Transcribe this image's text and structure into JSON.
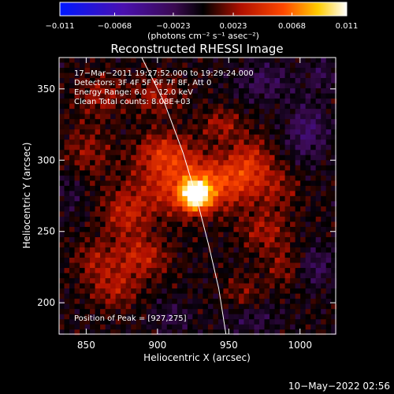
{
  "colorbar": {
    "ticks": [
      "−0.011",
      "−0.0068",
      "−0.0023",
      "0.0023",
      "0.0068",
      "0.011"
    ],
    "values": [
      -0.011,
      -0.0068,
      -0.0023,
      0.0023,
      0.0068,
      0.011
    ],
    "range": [
      -0.011,
      0.011
    ],
    "unit_label": "(photons cm⁻² s⁻¹ asec⁻²)",
    "colors": [
      "#0018ff",
      "#4a10b0",
      "#3a0a50",
      "#000000",
      "#b01000",
      "#ff4800",
      "#ffcc00",
      "#ffffff"
    ]
  },
  "plot": {
    "title": "Reconstructed RHESSI Image",
    "info_lines": [
      "17−Mar−2011 19:27:52.000 to 19:29:24.000",
      "Detectors: 3F 4F 5F 6F 7F 8F, Att 0",
      "Energy Range: 6.0 − 12.0 keV",
      "Clean    Total counts: 8.08E+03"
    ],
    "peak_label": "Position of Peak = [927,275]"
  },
  "footer": {
    "timestamp": "10−May−2022 02:56"
  },
  "chart_data": {
    "type": "heatmap",
    "title": "Reconstructed RHESSI Image",
    "xlabel": "Heliocentric X (arcsec)",
    "ylabel": "Heliocentric Y (arcsec)",
    "xlim": [
      831,
      1025
    ],
    "ylim": [
      178,
      372
    ],
    "xticks": [
      850,
      900,
      950,
      1000
    ],
    "yticks": [
      200,
      250,
      300,
      350
    ],
    "peak": {
      "x": 927,
      "y": 275,
      "value": 0.011
    },
    "grid": false,
    "limb": [
      {
        "x": 889,
        "y": 372
      },
      {
        "x": 905,
        "y": 340
      },
      {
        "x": 918,
        "y": 305
      },
      {
        "x": 927,
        "y": 275
      },
      {
        "x": 936,
        "y": 240
      },
      {
        "x": 943,
        "y": 210
      },
      {
        "x": 948,
        "y": 178
      }
    ],
    "blobs": [
      {
        "x": 927,
        "y": 275,
        "sx": 7,
        "sy": 7,
        "amp": 0.0105
      },
      {
        "x": 918,
        "y": 282,
        "sx": 22,
        "sy": 14,
        "amp": 0.0045
      },
      {
        "x": 950,
        "y": 285,
        "sx": 18,
        "sy": 12,
        "amp": 0.0035
      },
      {
        "x": 905,
        "y": 305,
        "sx": 14,
        "sy": 10,
        "amp": 0.0038
      },
      {
        "x": 965,
        "y": 300,
        "sx": 10,
        "sy": 12,
        "amp": 0.003
      },
      {
        "x": 878,
        "y": 262,
        "sx": 12,
        "sy": 12,
        "amp": 0.0032
      },
      {
        "x": 888,
        "y": 232,
        "sx": 14,
        "sy": 10,
        "amp": 0.0034
      },
      {
        "x": 870,
        "y": 210,
        "sx": 12,
        "sy": 10,
        "amp": 0.0028
      },
      {
        "x": 855,
        "y": 230,
        "sx": 10,
        "sy": 10,
        "amp": 0.0022
      },
      {
        "x": 945,
        "y": 325,
        "sx": 10,
        "sy": 8,
        "amp": 0.0026
      },
      {
        "x": 900,
        "y": 345,
        "sx": 12,
        "sy": 10,
        "amp": 0.0026
      },
      {
        "x": 860,
        "y": 345,
        "sx": 12,
        "sy": 10,
        "amp": 0.0024
      },
      {
        "x": 850,
        "y": 305,
        "sx": 12,
        "sy": 14,
        "amp": 0.0022
      },
      {
        "x": 975,
        "y": 250,
        "sx": 12,
        "sy": 10,
        "amp": 0.0026
      },
      {
        "x": 990,
        "y": 225,
        "sx": 10,
        "sy": 10,
        "amp": 0.0022
      },
      {
        "x": 960,
        "y": 205,
        "sx": 10,
        "sy": 10,
        "amp": 0.002
      },
      {
        "x": 985,
        "y": 280,
        "sx": 10,
        "sy": 12,
        "amp": 0.0018
      },
      {
        "x": 1005,
        "y": 320,
        "sx": 10,
        "sy": 14,
        "amp": -0.003
      },
      {
        "x": 975,
        "y": 355,
        "sx": 14,
        "sy": 10,
        "amp": -0.0022
      },
      {
        "x": 1010,
        "y": 225,
        "sx": 10,
        "sy": 10,
        "amp": -0.0024
      },
      {
        "x": 965,
        "y": 190,
        "sx": 14,
        "sy": 8,
        "amp": -0.002
      },
      {
        "x": 910,
        "y": 190,
        "sx": 10,
        "sy": 8,
        "amp": -0.0016
      },
      {
        "x": 840,
        "y": 280,
        "sx": 8,
        "sy": 12,
        "amp": -0.0014
      },
      {
        "x": 1015,
        "y": 360,
        "sx": 8,
        "sy": 8,
        "amp": -0.0018
      }
    ]
  }
}
